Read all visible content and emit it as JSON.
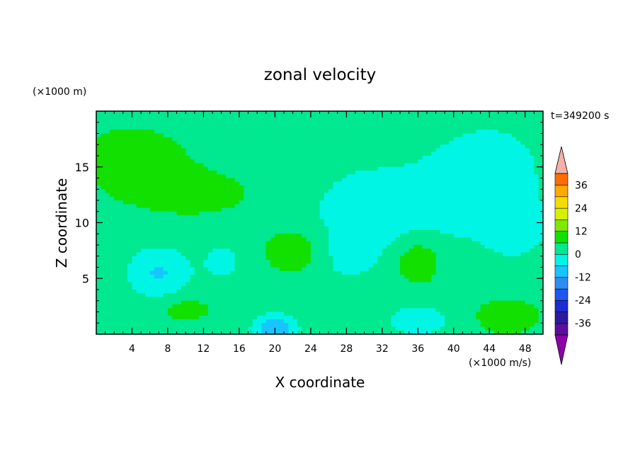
{
  "chart_data": {
    "type": "heatmap",
    "title": "zonal velocity",
    "xlabel": "X coordinate",
    "ylabel": "Z coordinate",
    "x_unit": "(×1000 m/s)",
    "y_unit": "(×1000 m)",
    "time_label": "t=349200 s",
    "xlim": [
      0,
      50
    ],
    "ylim": [
      0,
      20
    ],
    "xticks": [
      4,
      8,
      12,
      16,
      20,
      24,
      28,
      32,
      36,
      40,
      44,
      48
    ],
    "yticks": [
      5,
      10,
      15
    ],
    "colorbar": {
      "levels": [
        -42,
        -36,
        -30,
        -24,
        -18,
        -12,
        -6,
        0,
        6,
        12,
        18,
        24,
        30,
        36,
        42
      ],
      "tick_labels": [
        36,
        24,
        12,
        0,
        -12,
        -24,
        -36
      ],
      "colors": [
        "#5a0f9e",
        "#2d1a9e",
        "#1d2bd0",
        "#1f55f0",
        "#2c8ef2",
        "#19c4ff",
        "#00f5e5",
        "#00e890",
        "#12e000",
        "#7ee800",
        "#d6f000",
        "#f5dc00",
        "#ffaa00",
        "#ff6e00",
        "#ff2a10",
        "#f5b0a8"
      ],
      "under_color": "#8e00a8",
      "over_color": "#f5b0a8"
    },
    "field": {
      "background": 2,
      "blobs": [
        {
          "x": 4,
          "y": 16,
          "sx": 7,
          "sy": 3.2,
          "a": 0.9
        },
        {
          "x": 12,
          "y": 12.5,
          "sx": 10,
          "sy": 2.6,
          "a": 0.8
        },
        {
          "x": 22,
          "y": 7.5,
          "sx": 3.4,
          "sy": 2.1,
          "a": 1.5
        },
        {
          "x": 36,
          "y": 6.5,
          "sx": 2.6,
          "sy": 2.1,
          "a": 1.6
        },
        {
          "x": 46,
          "y": 1.6,
          "sx": 3.4,
          "sy": 1.5,
          "a": 1.5
        },
        {
          "x": 10,
          "y": 2.2,
          "sx": 3.0,
          "sy": 1.2,
          "a": 1.0
        },
        {
          "x": 7,
          "y": 5.5,
          "sx": 3.2,
          "sy": 2.2,
          "a": -1.6
        },
        {
          "x": 14,
          "y": 6.5,
          "sx": 2.4,
          "sy": 2.0,
          "a": -0.7
        },
        {
          "x": 20,
          "y": 0.5,
          "sx": 2.2,
          "sy": 1.1,
          "a": -2.5
        },
        {
          "x": 32,
          "y": 11,
          "sx": 12,
          "sy": 5,
          "a": -0.9
        },
        {
          "x": 44,
          "y": 15,
          "sx": 6,
          "sy": 4,
          "a": -0.9
        },
        {
          "x": 47,
          "y": 9.5,
          "sx": 3.5,
          "sy": 2.6,
          "a": -0.9
        },
        {
          "x": 36,
          "y": 1.2,
          "sx": 4,
          "sy": 1.5,
          "a": -0.9
        },
        {
          "x": 28,
          "y": 7,
          "sx": 3,
          "sy": 2.0,
          "a": -0.6
        }
      ]
    }
  }
}
